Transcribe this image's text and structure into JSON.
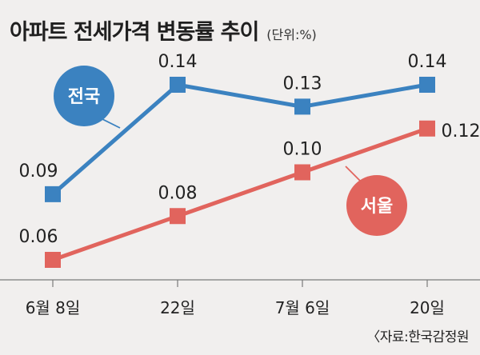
{
  "header": {
    "title": "아파트 전세가격 변동률 추이",
    "unit": "(단위:%)"
  },
  "footer": {
    "source": "〈자료:한국감정원"
  },
  "colors": {
    "nationwide": "#3b82c0",
    "seoul": "#e1645d",
    "background": "#f1efee"
  },
  "chart_data": {
    "type": "line",
    "title": "아파트 전세가격 변동률 추이",
    "categories": [
      "6월 8일",
      "22일",
      "7월 6일",
      "20일"
    ],
    "series": [
      {
        "name": "전국",
        "values": [
          0.09,
          0.14,
          0.13,
          0.14
        ],
        "labels": [
          "0.09",
          "0.14",
          "0.13",
          "0.14"
        ]
      },
      {
        "name": "서울",
        "values": [
          0.06,
          0.08,
          0.1,
          0.12
        ],
        "labels": [
          "0.06",
          "0.08",
          "0.10",
          "0.12"
        ]
      }
    ],
    "ylim": [
      0.04,
      0.155
    ],
    "grid": false,
    "marker": "square"
  }
}
